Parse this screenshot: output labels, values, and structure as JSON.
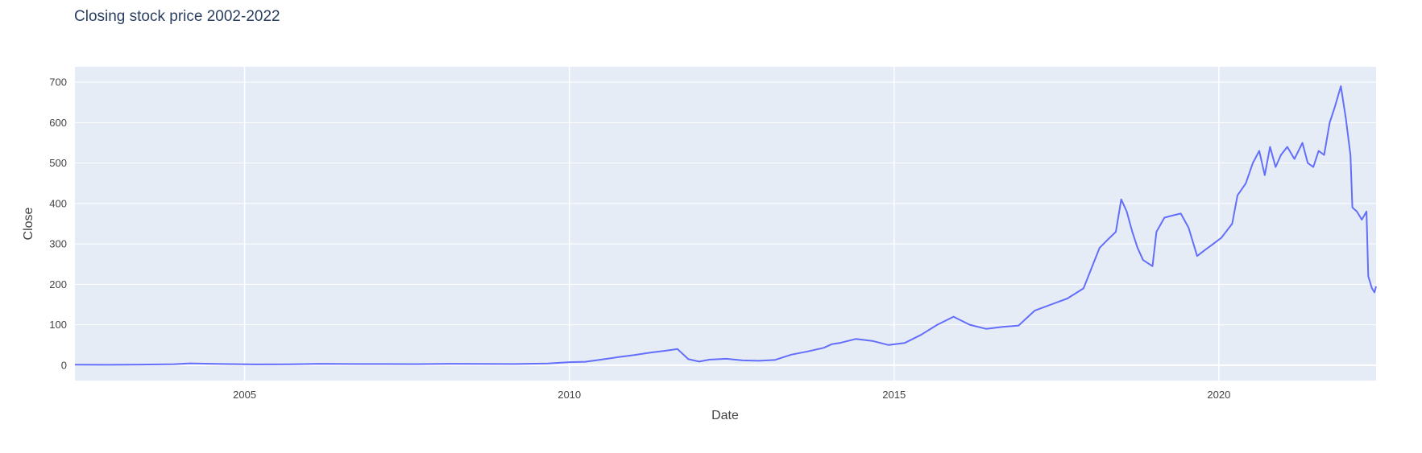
{
  "chart_data": {
    "type": "line",
    "title": "Closing stock price 2002-2022",
    "xlabel": "Date",
    "ylabel": "Close",
    "xlim": [
      "2002-05-23",
      "2022-06-03"
    ],
    "ylim": [
      -38,
      738
    ],
    "x_ticks": [
      "2005",
      "2010",
      "2015",
      "2020"
    ],
    "y_ticks": [
      0,
      100,
      200,
      300,
      400,
      500,
      600,
      700
    ],
    "grid": true,
    "colors": {
      "line": "#636efa",
      "plot_bg": "#e5ecf6",
      "grid": "#ffffff"
    },
    "series": [
      {
        "x": [
          "2002-05-23",
          "2002-12-01",
          "2003-06-01",
          "2003-12-01",
          "2004-03-01",
          "2004-09-01",
          "2005-03-01",
          "2005-09-01",
          "2006-03-01",
          "2006-09-01",
          "2007-03-01",
          "2007-09-01",
          "2008-03-01",
          "2008-09-01",
          "2009-03-01",
          "2009-09-01",
          "2010-01-01",
          "2010-04-01",
          "2010-07-01",
          "2010-10-01",
          "2011-01-01",
          "2011-04-01",
          "2011-07-01",
          "2011-09-01",
          "2011-11-01",
          "2012-01-01",
          "2012-03-01",
          "2012-06-01",
          "2012-09-01",
          "2012-12-01",
          "2013-03-01",
          "2013-06-01",
          "2013-09-01",
          "2013-12-01",
          "2014-01-15",
          "2014-03-01",
          "2014-06-01",
          "2014-09-01",
          "2014-12-01",
          "2015-03-01",
          "2015-06-01",
          "2015-09-01",
          "2015-12-01",
          "2016-03-01",
          "2016-06-01",
          "2016-09-01",
          "2016-12-01",
          "2017-03-01",
          "2017-06-01",
          "2017-09-01",
          "2017-12-01",
          "2018-01-15",
          "2018-03-01",
          "2018-04-15",
          "2018-06-01",
          "2018-07-01",
          "2018-08-01",
          "2018-09-01",
          "2018-10-01",
          "2018-11-01",
          "2018-12-24",
          "2019-01-15",
          "2019-03-01",
          "2019-04-15",
          "2019-06-01",
          "2019-07-15",
          "2019-09-01",
          "2019-10-15",
          "2019-12-01",
          "2020-01-15",
          "2020-03-16",
          "2020-04-15",
          "2020-06-01",
          "2020-07-10",
          "2020-08-15",
          "2020-09-15",
          "2020-10-15",
          "2020-11-15",
          "2020-12-15",
          "2021-01-20",
          "2021-03-01",
          "2021-04-15",
          "2021-05-15",
          "2021-06-15",
          "2021-07-15",
          "2021-08-15",
          "2021-09-15",
          "2021-10-15",
          "2021-11-17",
          "2021-12-15",
          "2022-01-10",
          "2022-01-21",
          "2022-02-15",
          "2022-03-15",
          "2022-04-10",
          "2022-04-20",
          "2022-05-11",
          "2022-05-25",
          "2022-06-03"
        ],
        "y": [
          1.2,
          0.9,
          1.5,
          2.5,
          4.5,
          3.0,
          2.0,
          2.2,
          3.5,
          3.0,
          3.0,
          2.8,
          3.5,
          3.2,
          3.0,
          4.2,
          7.5,
          8.5,
          14,
          20,
          25,
          31,
          36,
          40,
          15,
          9,
          14,
          16,
          12,
          11,
          13,
          26,
          34,
          43,
          52,
          55,
          65,
          60,
          50,
          55,
          75,
          100,
          120,
          100,
          90,
          95,
          98,
          135,
          150,
          165,
          190,
          240,
          290,
          310,
          330,
          410,
          380,
          330,
          290,
          260,
          245,
          330,
          365,
          370,
          375,
          340,
          270,
          285,
          300,
          315,
          350,
          420,
          450,
          500,
          530,
          470,
          540,
          490,
          520,
          540,
          510,
          550,
          500,
          490,
          530,
          520,
          600,
          640,
          690,
          610,
          520,
          390,
          380,
          360,
          380,
          220,
          190,
          180,
          195
        ]
      }
    ]
  }
}
